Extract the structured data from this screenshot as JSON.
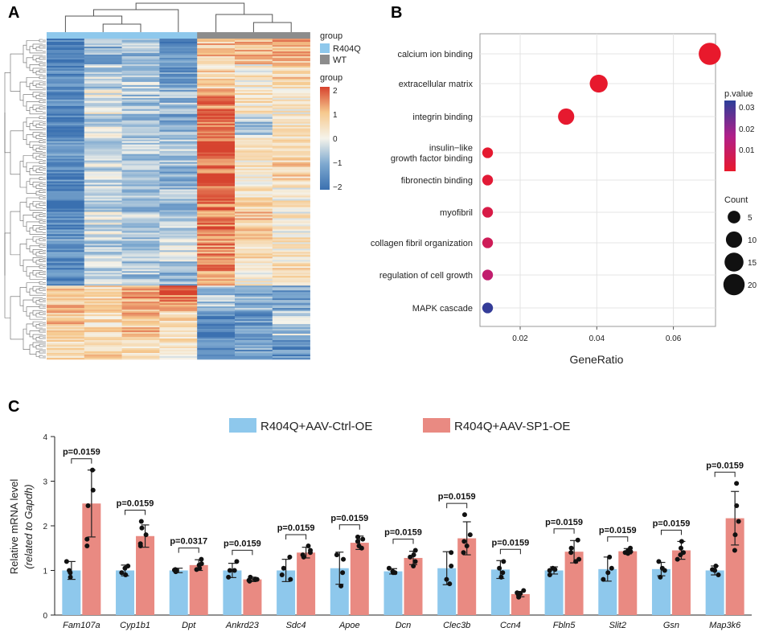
{
  "panels": {
    "a": "A",
    "b": "B",
    "c": "C"
  },
  "chart_data": [
    {
      "type": "heatmap",
      "legend_group": {
        "title": "group",
        "items": [
          {
            "label": "R404Q",
            "color": "#8ec8ec"
          },
          {
            "label": "WT",
            "color": "#8c8c8c"
          }
        ]
      },
      "colorbar": {
        "title": "group",
        "ticks": [
          "2",
          "1",
          "0",
          "−1",
          "−2"
        ],
        "range": [
          -2,
          2
        ],
        "colors": [
          "#d6422e",
          "#f6c98e",
          "#f5f3ea",
          "#7ea9d0",
          "#3a70b0"
        ]
      },
      "columns": [
        {
          "group": "R404Q",
          "pattern": [
            -1.8,
            -1.6,
            -1.5,
            -1.7,
            -1.4,
            -1.6,
            -1.8,
            -1.5,
            -1.3,
            -1.7,
            0.8,
            0.9,
            0.7
          ]
        },
        {
          "group": "R404Q",
          "pattern": [
            -0.9,
            -0.5,
            -0.1,
            -0.3,
            -0.7,
            -0.4,
            -0.6,
            -0.2,
            -0.5,
            -0.3,
            0.6,
            0.5,
            0.8
          ]
        },
        {
          "group": "R404Q",
          "pattern": [
            -0.8,
            -0.4,
            -0.6,
            -0.9,
            -0.5,
            -0.7,
            -0.8,
            -0.4,
            -0.6,
            -0.7,
            1.2,
            0.9,
            0.6
          ]
        },
        {
          "group": "R404Q",
          "pattern": [
            -1.5,
            -1.2,
            -0.8,
            -1.0,
            -0.6,
            -0.9,
            -0.7,
            -0.5,
            -0.4,
            -0.8,
            1.6,
            0.7,
            0.4
          ]
        },
        {
          "group": "WT",
          "pattern": [
            0.9,
            0.6,
            1.5,
            1.8,
            1.9,
            1.8,
            1.7,
            1.6,
            1.4,
            1.3,
            -0.6,
            -1.7,
            -1.6
          ]
        },
        {
          "group": "WT",
          "pattern": [
            1.0,
            0.3,
            0.4,
            -0.6,
            0.3,
            0.4,
            0.5,
            0.8,
            0.6,
            0.2,
            -0.9,
            -1.4,
            -1.2
          ]
        },
        {
          "group": "WT",
          "pattern": [
            1.0,
            0.8,
            0.2,
            0.4,
            0.5,
            0.7,
            0.3,
            0.2,
            0.4,
            0.6,
            -1.2,
            -0.5,
            -1.5
          ]
        }
      ]
    },
    {
      "type": "scatter",
      "xlabel": "GeneRatio",
      "xticks": [
        0.02,
        0.04,
        0.06
      ],
      "xlim": [
        0.0095,
        0.071
      ],
      "points": [
        {
          "term": "calcium ion binding",
          "ratio": 0.0695,
          "count": 22,
          "pvalue": 0.0002
        },
        {
          "term": "extracellular matrix",
          "ratio": 0.0405,
          "count": 13,
          "pvalue": 0.0004
        },
        {
          "term": "integrin binding",
          "ratio": 0.032,
          "count": 10,
          "pvalue": 0.0008
        },
        {
          "term": "insulin−like growth factor binding",
          "term_lines": [
            "insulin−like",
            "growth factor binding"
          ],
          "ratio": 0.0115,
          "count": 3,
          "pvalue": 0.001
        },
        {
          "term": "fibronectin binding",
          "ratio": 0.0115,
          "count": 3,
          "pvalue": 0.002
        },
        {
          "term": "myofibril",
          "ratio": 0.0115,
          "count": 3,
          "pvalue": 0.005
        },
        {
          "term": "collagen fibril organization",
          "ratio": 0.0115,
          "count": 3,
          "pvalue": 0.008
        },
        {
          "term": "regulation of cell growth",
          "ratio": 0.0115,
          "count": 3,
          "pvalue": 0.012
        },
        {
          "term": "MAPK cascade",
          "ratio": 0.0115,
          "count": 3,
          "pvalue": 0.033
        }
      ],
      "pvalue_legend": {
        "title": "p.value",
        "ticks": [
          "0.03",
          "0.02",
          "0.01"
        ],
        "range": [
          0.0002,
          0.034
        ],
        "colors": [
          "#e8192c",
          "#b0208a",
          "#2c3e99"
        ]
      },
      "count_legend": {
        "title": "Count",
        "sizes": [
          5,
          10,
          15,
          20
        ]
      }
    },
    {
      "type": "bar",
      "ylabel_line1": "Relative mRNA level",
      "ylabel_line2": "(related to Gapdh)",
      "ylim": [
        0,
        4
      ],
      "yticks": [
        "0",
        "1",
        "2",
        "3",
        "4"
      ],
      "series": [
        {
          "name": "R404Q+AAV-Ctrl-OE",
          "color": "#8ec8ec"
        },
        {
          "name": "R404Q+AAV-SP1-OE",
          "color": "#e98a82"
        }
      ],
      "genes": [
        {
          "name": "Fam107a",
          "p": "p=0.0159",
          "ctrl": [
            1.0,
            0.2
          ],
          "sp1": [
            2.5,
            0.75
          ],
          "ctrl_pts": [
            1.2,
            0.85,
            1.0,
            0.95
          ],
          "sp1_pts": [
            3.25,
            2.8,
            2.45,
            1.7,
            1.55
          ]
        },
        {
          "name": "Cyp1b1",
          "p": "p=0.0159",
          "ctrl": [
            1.0,
            0.12
          ],
          "sp1": [
            1.77,
            0.25
          ],
          "ctrl_pts": [
            1.1,
            0.95,
            0.9,
            1.05
          ],
          "sp1_pts": [
            2.1,
            1.95,
            1.8,
            1.6,
            1.55
          ]
        },
        {
          "name": "Dpt",
          "p": "p=0.0317",
          "ctrl": [
            1.0,
            0.05
          ],
          "sp1": [
            1.12,
            0.12
          ],
          "ctrl_pts": [
            1.02,
            0.97,
            1.0,
            1.01
          ],
          "sp1_pts": [
            1.25,
            1.15,
            1.12,
            1.05,
            1.02
          ]
        },
        {
          "name": "Ankrd23",
          "p": "p=0.0159",
          "ctrl": [
            1.0,
            0.16
          ],
          "sp1": [
            0.8,
            0.05
          ],
          "ctrl_pts": [
            1.2,
            1.0,
            0.85,
            1.0
          ],
          "sp1_pts": [
            0.85,
            0.8,
            0.78,
            0.76,
            0.8
          ]
        },
        {
          "name": "Sdc4",
          "p": "p=0.0159",
          "ctrl": [
            1.0,
            0.25
          ],
          "sp1": [
            1.4,
            0.12
          ],
          "ctrl_pts": [
            1.3,
            1.05,
            0.8,
            0.9
          ],
          "sp1_pts": [
            1.55,
            1.4,
            1.35,
            1.3,
            1.45
          ]
        },
        {
          "name": "Apoe",
          "p": "p=0.0159",
          "ctrl": [
            1.05,
            0.36
          ],
          "sp1": [
            1.62,
            0.15
          ],
          "ctrl_pts": [
            1.35,
            1.25,
            0.65,
            0.95
          ],
          "sp1_pts": [
            1.75,
            1.65,
            1.55,
            1.5,
            1.7
          ]
        },
        {
          "name": "Dcn",
          "p": "p=0.0159",
          "ctrl": [
            0.98,
            0.06
          ],
          "sp1": [
            1.28,
            0.15
          ],
          "ctrl_pts": [
            1.05,
            0.95,
            0.98,
            0.95
          ],
          "sp1_pts": [
            1.45,
            1.3,
            1.2,
            1.1,
            1.35
          ]
        },
        {
          "name": "Clec3b",
          "p": "p=0.0159",
          "ctrl": [
            1.05,
            0.37
          ],
          "sp1": [
            1.72,
            0.37
          ],
          "ctrl_pts": [
            1.4,
            1.1,
            0.8,
            0.7
          ],
          "sp1_pts": [
            2.25,
            1.8,
            1.65,
            1.55,
            1.4
          ]
        },
        {
          "name": "Ccn4",
          "p": "p=0.0159",
          "ctrl": [
            1.02,
            0.2
          ],
          "sp1": [
            0.47,
            0.06
          ],
          "ctrl_pts": [
            1.2,
            0.95,
            0.85,
            1.05
          ],
          "sp1_pts": [
            0.55,
            0.5,
            0.45,
            0.4,
            0.48
          ]
        },
        {
          "name": "Fbln5",
          "p": "p=0.0159",
          "ctrl": [
            1.0,
            0.08
          ],
          "sp1": [
            1.42,
            0.25
          ],
          "ctrl_pts": [
            1.05,
            1.0,
            0.9,
            1.02
          ],
          "sp1_pts": [
            1.68,
            1.5,
            1.4,
            1.25,
            1.2
          ]
        },
        {
          "name": "Slit2",
          "p": "p=0.0159",
          "ctrl": [
            1.03,
            0.27
          ],
          "sp1": [
            1.43,
            0.06
          ],
          "ctrl_pts": [
            1.3,
            1.05,
            0.8,
            0.95
          ],
          "sp1_pts": [
            1.5,
            1.45,
            1.4,
            1.38,
            1.42
          ]
        },
        {
          "name": "Gsn",
          "p": "p=0.0159",
          "ctrl": [
            1.03,
            0.15
          ],
          "sp1": [
            1.45,
            0.2
          ],
          "ctrl_pts": [
            1.2,
            1.05,
            0.85,
            1.0
          ],
          "sp1_pts": [
            1.65,
            1.5,
            1.4,
            1.35,
            1.25
          ]
        },
        {
          "name": "Map3k6",
          "p": "p=0.0159",
          "ctrl": [
            1.0,
            0.1
          ],
          "sp1": [
            2.17,
            0.6
          ],
          "ctrl_pts": [
            1.1,
            1.0,
            0.9,
            1.02
          ],
          "sp1_pts": [
            2.95,
            2.45,
            2.1,
            1.8,
            1.45
          ]
        }
      ]
    }
  ]
}
